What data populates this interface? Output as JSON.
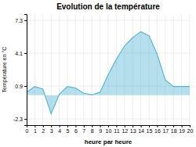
{
  "chart_data": {
    "type": "area",
    "title": "Evolution de la température",
    "xlabel": "heure par heure",
    "ylabel": "Température en °C",
    "x": [
      0,
      1,
      2,
      3,
      4,
      5,
      6,
      7,
      8,
      9,
      10,
      11,
      12,
      13,
      14,
      15,
      16,
      17,
      18,
      19,
      20
    ],
    "values": [
      0.3,
      0.85,
      0.6,
      -1.8,
      0.1,
      0.85,
      0.7,
      0.2,
      0.05,
      0.3,
      2.0,
      3.5,
      4.8,
      5.6,
      6.2,
      5.8,
      4.0,
      1.5,
      0.85,
      0.85,
      0.85
    ],
    "color": "#5ab8d4",
    "xlim": [
      0,
      20
    ],
    "xticks": [
      0,
      1,
      2,
      3,
      4,
      5,
      6,
      7,
      8,
      9,
      10,
      11,
      12,
      13,
      14,
      15,
      16,
      17,
      18,
      19,
      20
    ],
    "ylim": [
      -2.9,
      7.9
    ],
    "yticks": [
      -2.3,
      0.9,
      4.1,
      7.3
    ],
    "grid": true
  }
}
